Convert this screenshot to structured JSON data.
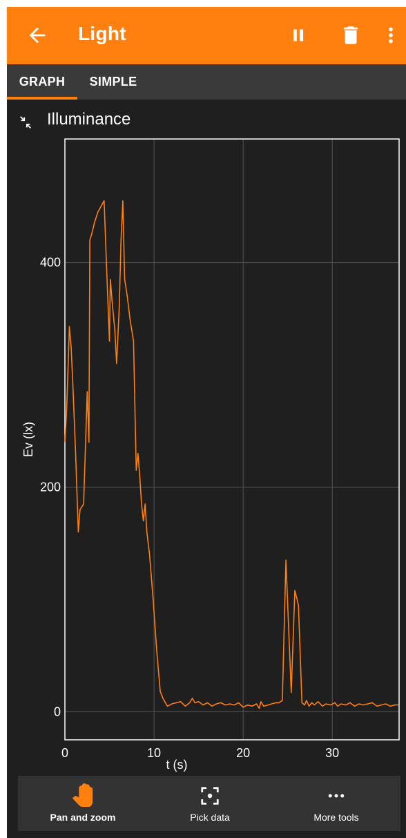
{
  "app_bar": {
    "title": "Light",
    "icons": [
      "back-arrow-icon",
      "pause-icon",
      "trash-icon",
      "more-vert-icon"
    ]
  },
  "tabs": [
    {
      "label": "GRAPH",
      "active": true
    },
    {
      "label": "SIMPLE",
      "active": false
    }
  ],
  "graph": {
    "title": "Illuminance",
    "collapse_icon": "collapse-icon"
  },
  "chart_data": {
    "type": "line",
    "title": "Illuminance",
    "xlabel": "t (s)",
    "ylabel": "Ev (lx)",
    "xlim": [
      0,
      37.5
    ],
    "ylim": [
      -25,
      510
    ],
    "xticks": [
      0,
      10,
      20,
      30
    ],
    "yticks": [
      0,
      200,
      400
    ],
    "grid": true,
    "line_color": "#ff7f0f",
    "series": [
      {
        "x": [
          0,
          0.2,
          0.5,
          0.7,
          0.9,
          1.2,
          1.5,
          1.7,
          2.1,
          2.5,
          2.7,
          2.8,
          3.0,
          3.3,
          3.7,
          4.4,
          4.7,
          5.0,
          5.1,
          5.3,
          5.6,
          5.8,
          6.1,
          6.3,
          6.5,
          6.7,
          7.0,
          7.3,
          7.7,
          8.0,
          8.2,
          8.4,
          8.6,
          8.8,
          9.0,
          9.2,
          9.5,
          9.9,
          10.3,
          10.7,
          11.0,
          11.5,
          12.0,
          12.5,
          13.0,
          13.5,
          14.0,
          14.3,
          14.6,
          15.0,
          15.5,
          16.0,
          16.5,
          17.0,
          17.5,
          18.0,
          18.5,
          19.0,
          19.5,
          20.0,
          20.5,
          21.0,
          21.5,
          21.8,
          22.0,
          22.3,
          22.8,
          23.2,
          23.7,
          24.0,
          24.4,
          24.8,
          25.1,
          25.4,
          25.8,
          26.2,
          26.6,
          26.9,
          27.1,
          27.4,
          27.7,
          28.0,
          28.4,
          28.9,
          29.3,
          29.8,
          30.3,
          30.6,
          31.0,
          31.5,
          32.0,
          32.5,
          33.0,
          33.5,
          34.0,
          34.5,
          35.0,
          35.5,
          36.0,
          36.5,
          37.0,
          37.4
        ],
        "y": [
          240,
          270,
          343,
          325,
          290,
          230,
          160,
          180,
          185,
          285,
          240,
          420,
          425,
          435,
          445,
          455,
          390,
          330,
          385,
          365,
          340,
          310,
          360,
          420,
          455,
          385,
          370,
          350,
          330,
          215,
          230,
          210,
          185,
          170,
          185,
          160,
          140,
          100,
          55,
          18,
          12,
          5,
          7,
          8,
          9,
          5,
          8,
          12,
          8,
          9,
          6,
          8,
          5,
          7,
          8,
          6,
          7,
          6,
          8,
          4,
          6,
          5,
          7,
          3,
          9,
          5,
          6,
          7,
          8,
          8,
          10,
          135,
          75,
          17,
          108,
          95,
          8,
          6,
          10,
          5,
          8,
          6,
          9,
          5,
          7,
          6,
          8,
          5,
          7,
          6,
          8,
          5,
          7,
          6,
          7,
          8,
          5,
          6,
          7,
          5,
          6,
          6
        ]
      }
    ]
  },
  "toolbar": {
    "items": [
      {
        "label": "Pan and zoom",
        "icon": "hand-icon",
        "active": true
      },
      {
        "label": "Pick data",
        "icon": "focus-point-icon",
        "active": false
      },
      {
        "label": "More tools",
        "icon": "more-horiz-icon",
        "active": false
      }
    ]
  }
}
